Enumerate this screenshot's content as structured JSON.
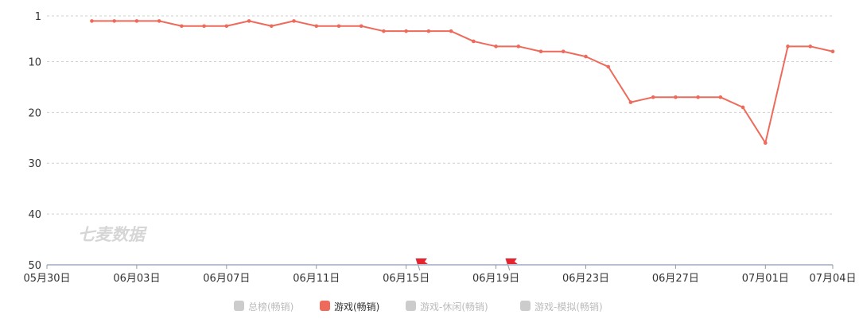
{
  "chart_data": {
    "type": "line",
    "y_inverted": true,
    "ylim": [
      1,
      50
    ],
    "y_ticks": [
      1,
      10,
      20,
      30,
      40,
      50
    ],
    "grid": "horizontal dashed",
    "x_tick_labels": [
      "05月30日",
      "06月03日",
      "06月07日",
      "06月11日",
      "06月15日",
      "06月19日",
      "06月23日",
      "06月27日",
      "07月01日",
      "07月04日"
    ],
    "x_tick_dates": [
      "05-30",
      "06-03",
      "06-07",
      "06-11",
      "06-15",
      "06-19",
      "06-23",
      "06-27",
      "07-01",
      "07-04"
    ],
    "x_range": [
      "05-30",
      "07-04"
    ],
    "series": [
      {
        "name": "游戏(畅销)",
        "color": "#ee6a5b",
        "x": [
          "06-01",
          "06-02",
          "06-03",
          "06-04",
          "06-05",
          "06-06",
          "06-07",
          "06-08",
          "06-09",
          "06-10",
          "06-11",
          "06-12",
          "06-13",
          "06-14",
          "06-15",
          "06-16",
          "06-17",
          "06-18",
          "06-19",
          "06-20",
          "06-21",
          "06-22",
          "06-23",
          "06-24",
          "06-25",
          "06-26",
          "06-27",
          "06-28",
          "06-29",
          "06-30",
          "07-01",
          "07-02",
          "07-03",
          "07-04"
        ],
        "values": [
          2,
          2,
          2,
          2,
          3,
          3,
          3,
          2,
          3,
          2,
          3,
          3,
          3,
          4,
          4,
          4,
          4,
          6,
          7,
          7,
          8,
          8,
          9,
          11,
          18,
          17,
          17,
          17,
          17,
          19,
          26,
          7,
          7,
          8
        ]
      }
    ],
    "markers": [
      {
        "type": "flag",
        "x": "06-16",
        "color": "#e8232d"
      },
      {
        "type": "flag",
        "x": "06-20",
        "color": "#e8232d"
      }
    ],
    "legend": {
      "placement": "bottom-center",
      "items": [
        {
          "label": "总榜(畅销)",
          "active": false,
          "color": "#cccccc"
        },
        {
          "label": "游戏(畅销)",
          "active": true,
          "color": "#ee6a5b"
        },
        {
          "label": "游戏-休闲(畅销)",
          "active": false,
          "color": "#cccccc"
        },
        {
          "label": "游戏-模拟(畅销)",
          "active": false,
          "color": "#cccccc"
        }
      ]
    },
    "watermark": "七麦数据"
  }
}
